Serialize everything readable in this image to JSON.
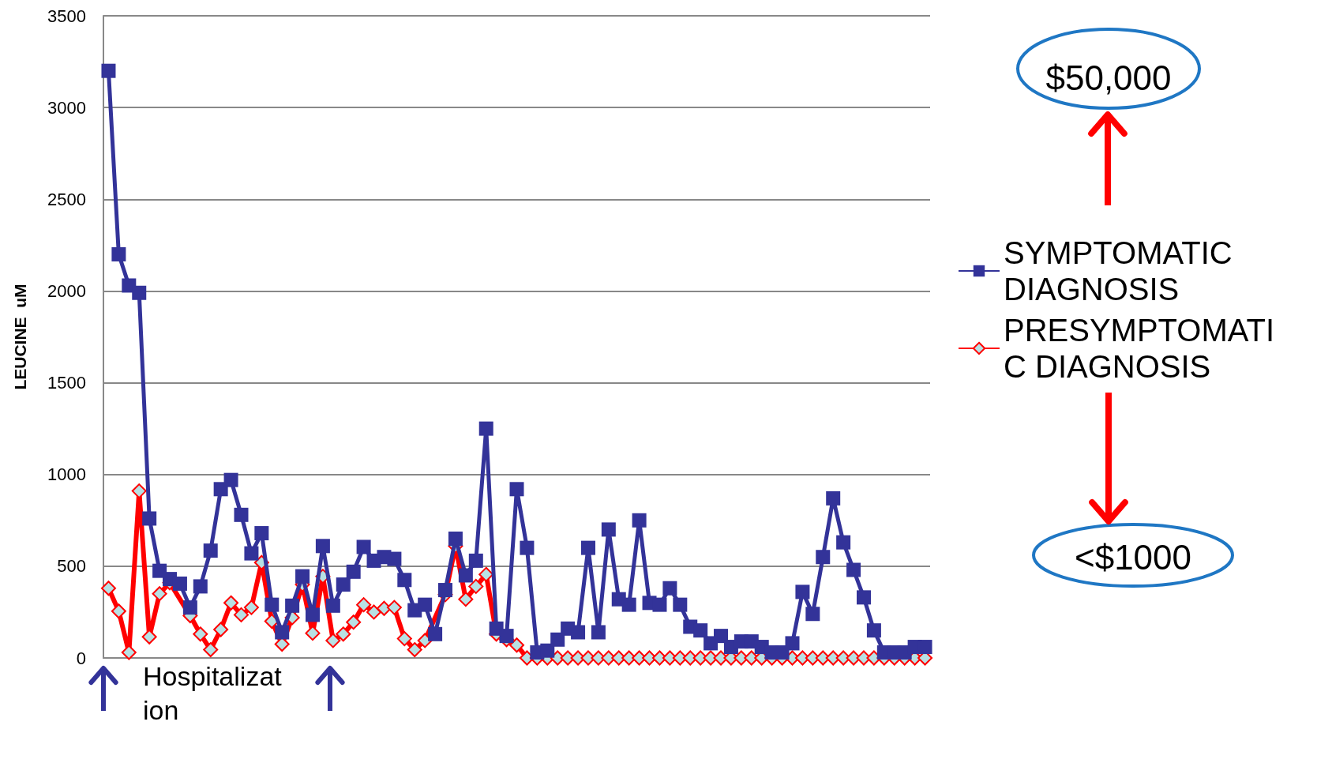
{
  "chart_data": {
    "type": "line",
    "ylabel": "LEUCINE  uM",
    "categories": [
      null,
      null,
      null,
      null,
      null,
      null,
      null,
      null,
      null,
      null,
      null,
      null,
      null,
      null,
      null,
      null,
      null,
      null,
      null,
      null,
      null,
      null,
      null,
      null,
      null,
      null,
      null,
      null,
      null,
      null,
      null,
      null,
      null,
      null,
      null,
      null,
      null,
      null,
      null,
      null,
      null,
      null,
      null,
      null,
      null,
      null,
      null,
      null,
      null,
      null,
      null,
      null,
      null,
      null,
      null,
      null,
      null,
      null,
      null,
      null,
      null,
      null,
      null,
      null,
      null,
      null,
      null,
      null,
      null,
      null,
      null,
      null,
      null,
      null,
      null,
      null,
      null,
      null,
      null,
      null,
      null
    ],
    "series": [
      {
        "name": "SYMPTOMATIC DIAGNOSIS",
        "color": "#333399",
        "marker": "square",
        "values": [
          3200,
          2200,
          2030,
          1990,
          760,
          475,
          430,
          405,
          275,
          390,
          585,
          920,
          970,
          780,
          570,
          680,
          290,
          140,
          285,
          445,
          235,
          610,
          285,
          400,
          470,
          605,
          530,
          550,
          540,
          425,
          260,
          290,
          130,
          370,
          650,
          450,
          530,
          1250,
          160,
          120,
          920,
          600,
          30,
          40,
          100,
          160,
          140,
          600,
          140,
          700,
          320,
          290,
          750,
          300,
          290,
          380,
          290,
          170,
          150,
          80,
          120,
          60,
          90,
          90,
          60,
          30,
          30,
          80,
          360,
          240,
          550,
          870,
          630,
          480,
          330,
          150,
          30,
          30,
          30,
          60,
          60
        ]
      },
      {
        "name": "PRESYMPTOMATIC DIAGNOSIS",
        "color": "#ff0000",
        "marker": "diamond",
        "values": [
          380,
          255,
          30,
          910,
          115,
          350,
          410,
          null,
          230,
          130,
          45,
          155,
          300,
          235,
          275,
          520,
          200,
          75,
          220,
          400,
          135,
          445,
          95,
          130,
          195,
          290,
          250,
          270,
          275,
          105,
          45,
          95,
          null,
          345,
          610,
          320,
          390,
          455,
          130,
          100,
          70,
          0,
          0,
          0,
          0,
          0,
          0,
          0,
          0,
          0,
          0,
          0,
          0,
          0,
          0,
          0,
          0,
          0,
          0,
          0,
          0,
          0,
          0,
          0,
          0,
          0,
          0,
          0,
          0,
          0,
          0,
          0,
          0,
          0,
          0,
          0,
          0,
          0,
          0,
          0,
          0
        ]
      }
    ],
    "ylim": [
      0,
      3500
    ],
    "yticks": [
      0,
      500,
      1000,
      1500,
      2000,
      2500,
      3000,
      3500
    ],
    "grid": "y",
    "legend": "right",
    "tick_labels": "y",
    "line_style": "solid",
    "annotations": [
      "$50,000",
      "<$1000",
      "Hospitalization"
    ]
  }
}
